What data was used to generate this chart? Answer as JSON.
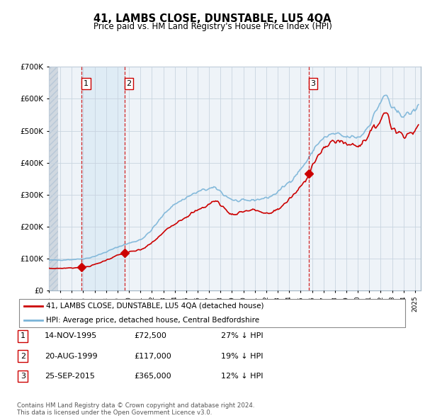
{
  "title": "41, LAMBS CLOSE, DUNSTABLE, LU5 4QA",
  "subtitle": "Price paid vs. HM Land Registry's House Price Index (HPI)",
  "ylim": [
    0,
    700000
  ],
  "sale_prices": [
    72500,
    117000,
    365000
  ],
  "sale_labels": [
    "1",
    "2",
    "3"
  ],
  "sale_line_x": [
    1995.87,
    1999.63,
    2015.73
  ],
  "hpi_color": "#7ab4d8",
  "price_color": "#cc0000",
  "sale_marker_color": "#cc0000",
  "grid_color": "#c8d4e0",
  "legend_entries": [
    "41, LAMBS CLOSE, DUNSTABLE, LU5 4QA (detached house)",
    "HPI: Average price, detached house, Central Bedfordshire"
  ],
  "table_rows": [
    [
      "1",
      "14-NOV-1995",
      "£72,500",
      "27% ↓ HPI"
    ],
    [
      "2",
      "20-AUG-1999",
      "£117,000",
      "19% ↓ HPI"
    ],
    [
      "3",
      "25-SEP-2015",
      "£365,000",
      "12% ↓ HPI"
    ]
  ],
  "footer": "Contains HM Land Registry data © Crown copyright and database right 2024.\nThis data is licensed under the Open Government Licence v3.0.",
  "xmin": 1993,
  "xmax": 2025.5
}
